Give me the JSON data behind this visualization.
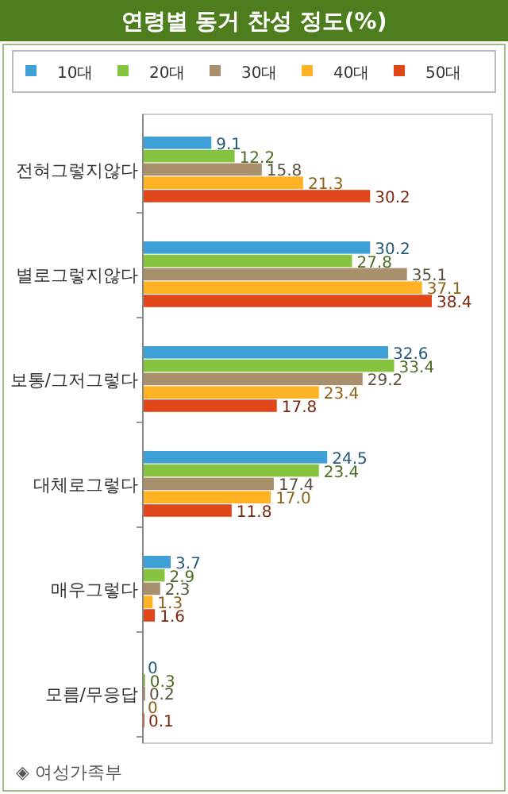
{
  "chart_data": {
    "type": "bar",
    "orientation": "horizontal",
    "title": "연령별 동거 찬성 정도(%)",
    "categories": [
      "전혀그렇지않다",
      "별로그렇지않다",
      "보통/그저그렇다",
      "대체로그렇다",
      "매우그렇다",
      "모름/무응답"
    ],
    "series": [
      {
        "name": "10대",
        "color": "#3fa0d8",
        "values": [
          9.1,
          30.2,
          32.6,
          24.5,
          3.7,
          0
        ]
      },
      {
        "name": "20대",
        "color": "#86c440",
        "values": [
          12.2,
          27.8,
          33.4,
          23.4,
          2.9,
          0.3
        ]
      },
      {
        "name": "30대",
        "color": "#a8906c",
        "values": [
          15.8,
          35.1,
          29.2,
          17.4,
          2.3,
          0.2
        ]
      },
      {
        "name": "40대",
        "color": "#ffb224",
        "values": [
          21.3,
          37.1,
          23.4,
          17.0,
          1.3,
          0
        ],
        "value_labels": [
          "21.3",
          "37.1",
          "23.4",
          "17.0",
          "1.3",
          "0"
        ]
      },
      {
        "name": "50대",
        "color": "#e0461a",
        "values": [
          30.2,
          38.4,
          17.8,
          11.8,
          1.6,
          0.1
        ]
      }
    ],
    "data_labels": true,
    "legend": "top",
    "annotations": [
      "◈ 여성가족부"
    ]
  }
}
